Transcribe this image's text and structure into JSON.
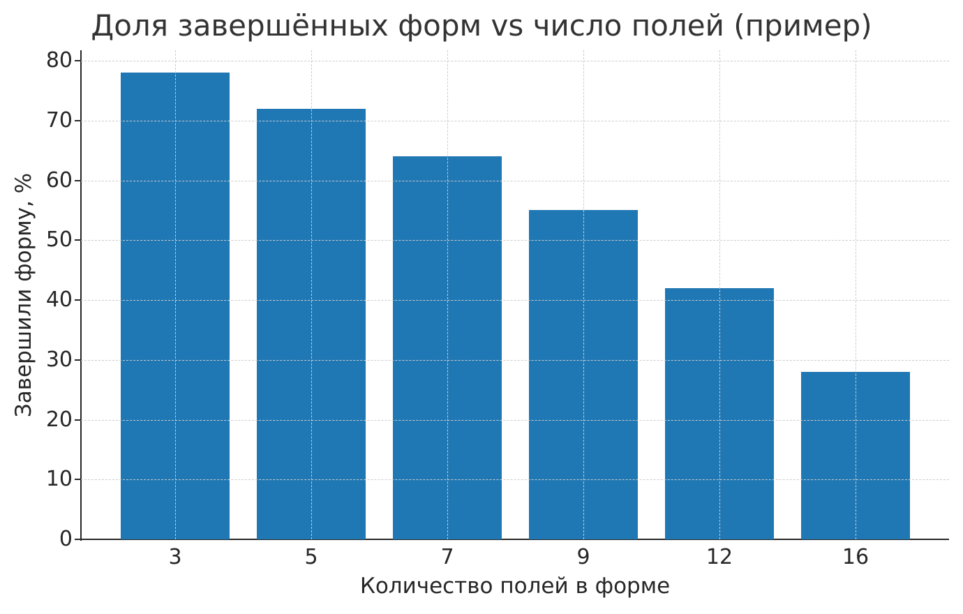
{
  "chart_data": {
    "type": "bar",
    "title": "Доля завершённых форм vs число полей (пример)",
    "xlabel": "Количество полей в форме",
    "ylabel": "Завершили форму, %",
    "categories": [
      "3",
      "5",
      "7",
      "9",
      "12",
      "16"
    ],
    "values": [
      78,
      72,
      64,
      55,
      42,
      28
    ],
    "ylim": [
      0,
      82
    ],
    "yticks": [
      "0",
      "10",
      "20",
      "30",
      "40",
      "50",
      "60",
      "70",
      "80"
    ],
    "grid": true,
    "grid_style": "dashed",
    "legend": null,
    "bar_color": "#1f77b4"
  }
}
